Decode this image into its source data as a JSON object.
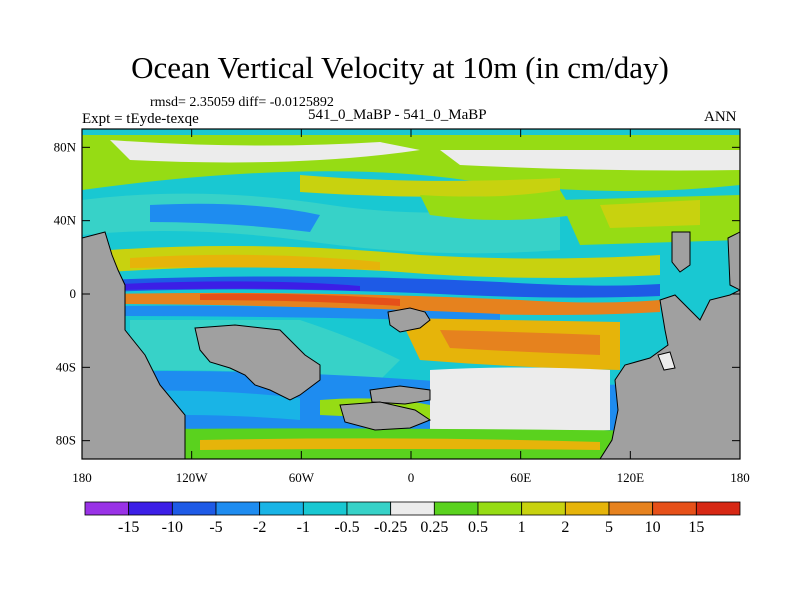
{
  "chart_data": {
    "type": "heatmap",
    "title": "Ocean Vertical Velocity at 10m (in cm/day)",
    "stats_line": "rmsd= 2.35059 diff= -0.0125892",
    "left_label": "Expt = tEyde-texqe",
    "center_label": "541_0_MaBP - 541_0_MaBP",
    "right_label": "ANN",
    "x_ticks": [
      {
        "value": -180,
        "label": "180"
      },
      {
        "value": -120,
        "label": "120W"
      },
      {
        "value": -60,
        "label": "60W"
      },
      {
        "value": 0,
        "label": "0"
      },
      {
        "value": 60,
        "label": "60E"
      },
      {
        "value": 120,
        "label": "120E"
      },
      {
        "value": 180,
        "label": "180"
      }
    ],
    "y_ticks": [
      {
        "value": 80,
        "label": "80N"
      },
      {
        "value": 40,
        "label": "40N"
      },
      {
        "value": 0,
        "label": "0"
      },
      {
        "value": -40,
        "label": "40S"
      },
      {
        "value": -80,
        "label": "80S"
      }
    ],
    "xlim": [
      -180,
      180
    ],
    "ylim": [
      -90,
      90
    ],
    "colorbar": {
      "labels": [
        "-15",
        "-10",
        "-5",
        "-2",
        "-1",
        "-0.5",
        "-0.25",
        "0.25",
        "0.5",
        "1",
        "2",
        "5",
        "10",
        "15"
      ],
      "colors": [
        "#9932e6",
        "#3c1ee6",
        "#1e5ae6",
        "#1e8cf0",
        "#19b4e6",
        "#19c8d2",
        "#37d2c8",
        "#ececec",
        "#5ad21e",
        "#96dc14",
        "#c8d20f",
        "#e6b40a",
        "#e6821e",
        "#e65019",
        "#d72814"
      ]
    },
    "land_color": "#a0a0a0"
  }
}
